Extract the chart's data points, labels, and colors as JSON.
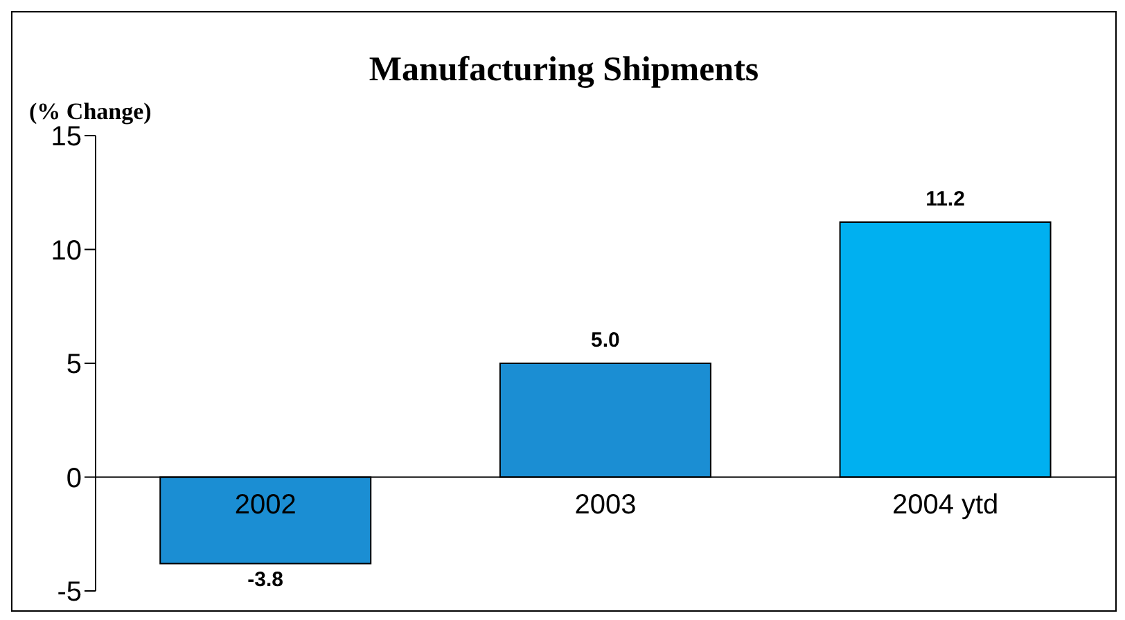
{
  "chart_data": {
    "type": "bar",
    "title": "Manufacturing Shipments",
    "ylabel": "(% Change)",
    "categories": [
      "2002",
      "2003",
      "2004 ytd"
    ],
    "values": [
      -3.8,
      5.0,
      11.2
    ],
    "colors": [
      "#1b8ed3",
      "#1b8ed3",
      "#00b0f0"
    ],
    "value_labels": [
      "-3.8",
      "5.0",
      "11.2"
    ],
    "ylim": [
      -5,
      15
    ],
    "yticks": [
      -5,
      0,
      5,
      10,
      15
    ]
  }
}
